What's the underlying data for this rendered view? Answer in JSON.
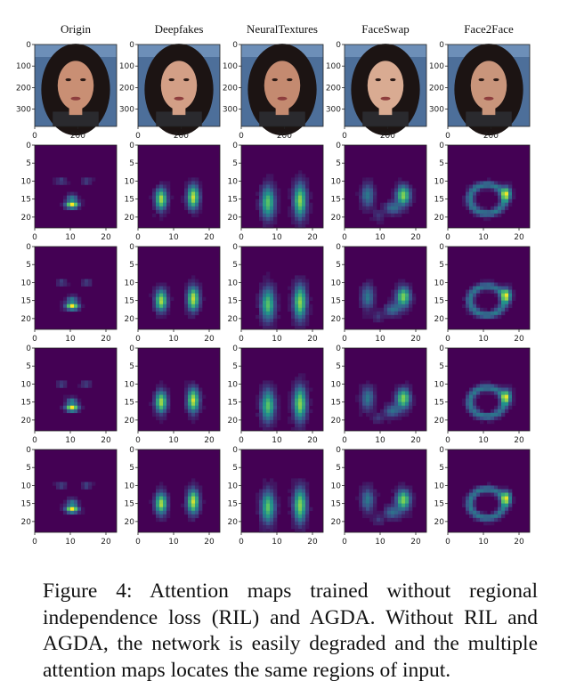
{
  "figure": {
    "columns": [
      "Origin",
      "Deepfakes",
      "NeuralTextures",
      "FaceSwap",
      "Face2Face"
    ],
    "face_row": {
      "y_ticks": [
        "0",
        "100",
        "200",
        "300"
      ],
      "x_ticks": [
        "0",
        "200"
      ]
    },
    "attention_rows": {
      "count": 4,
      "y_ticks": [
        "0",
        "5",
        "10",
        "15",
        "20"
      ],
      "x_ticks": [
        "0",
        "10",
        "20"
      ]
    },
    "colormap": "viridis",
    "colors": {
      "background": "#440154",
      "mid": "#21918c",
      "high": "#fde725"
    }
  },
  "caption": {
    "label": "Figure 4:",
    "text": "Attention maps trained without regional independence loss (RIL) and AGDA. Without RIL and AGDA, the network is easily degraded and the multiple attention maps locates the same regions of input."
  }
}
